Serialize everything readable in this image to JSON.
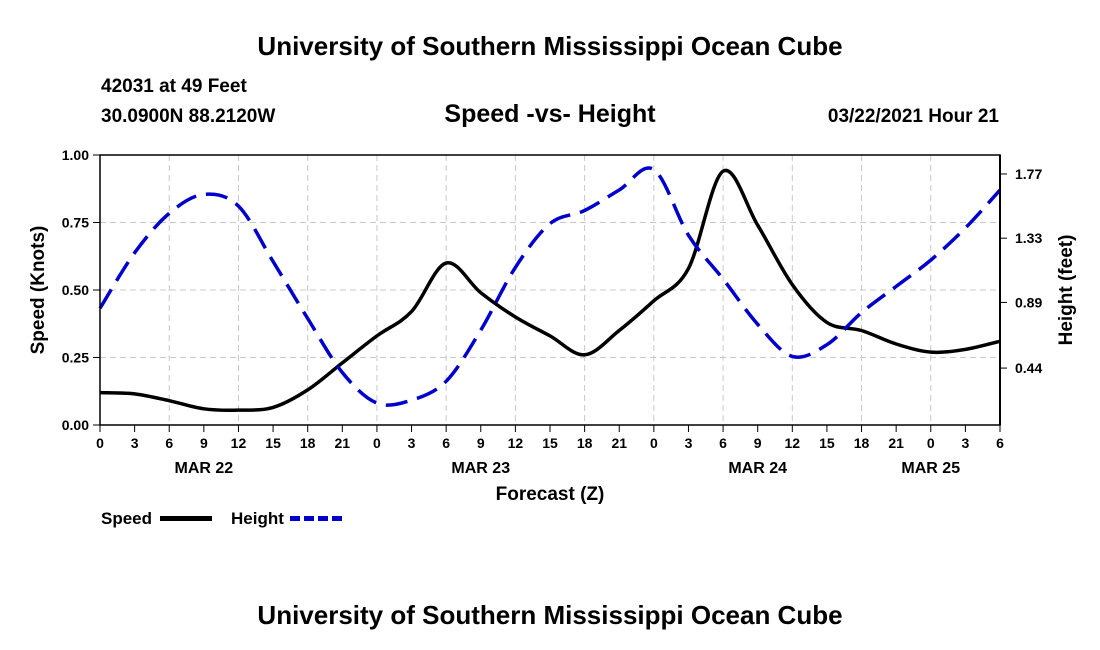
{
  "header": {
    "top_title": "University of Southern Mississippi Ocean Cube",
    "station": "42031 at 49 Feet",
    "coords": "30.0900N 88.2120W",
    "chart_title": "Speed -vs- Height",
    "date_hour": "03/22/2021 Hour 21"
  },
  "footer": {
    "bottom_title": "University of Southern Mississippi Ocean Cube"
  },
  "legend": {
    "speed_label": "Speed",
    "height_label": "Height"
  },
  "colors": {
    "speed": "#000000",
    "height": "#0000cc",
    "grid": "#c8c8c8"
  },
  "chart_data": {
    "type": "line",
    "title": "Speed -vs- Height",
    "xlabel": "Forecast (Z)",
    "ylabel": "Speed (Knots)",
    "ylabel_right": "Height (feet)",
    "xlim_hours": [
      0,
      78
    ],
    "ylim": [
      0,
      1
    ],
    "ylim_right": [
      0.05,
      1.9
    ],
    "x_ticks": [
      0,
      3,
      6,
      9,
      12,
      15,
      18,
      21,
      24,
      27,
      30,
      33,
      36,
      39,
      42,
      45,
      48,
      51,
      54,
      57,
      60,
      63,
      66,
      69,
      72,
      75,
      78
    ],
    "x_tick_labels": [
      "0",
      "3",
      "6",
      "9",
      "12",
      "15",
      "18",
      "21",
      "0",
      "3",
      "6",
      "9",
      "12",
      "15",
      "18",
      "21",
      "0",
      "3",
      "6",
      "9",
      "12",
      "15",
      "18",
      "21",
      "0",
      "3",
      "6"
    ],
    "date_labels": [
      {
        "hour": 9,
        "label": "MAR 22"
      },
      {
        "hour": 33,
        "label": "MAR 23"
      },
      {
        "hour": 57,
        "label": "MAR 24"
      },
      {
        "hour": 72,
        "label": "MAR 25"
      }
    ],
    "y_ticks": [
      0.0,
      0.25,
      0.5,
      0.75,
      1.0
    ],
    "y_tick_labels": [
      "0.00",
      "0.25",
      "0.50",
      "0.75",
      "1.00"
    ],
    "y_right_ticks": [
      0.44,
      0.89,
      1.33,
      1.77
    ],
    "y_right_tick_labels": [
      "0.44",
      "0.89",
      "1.33",
      "1.77"
    ],
    "grid": true,
    "series": [
      {
        "name": "Speed",
        "axis": "left",
        "style": "solid",
        "x": [
          0,
          3,
          6,
          9,
          12,
          15,
          18,
          21,
          24,
          27,
          30,
          33,
          36,
          39,
          42,
          45,
          48,
          51,
          54,
          57,
          60,
          63,
          66,
          69,
          72,
          75,
          78
        ],
        "values": [
          0.12,
          0.115,
          0.09,
          0.06,
          0.055,
          0.065,
          0.13,
          0.23,
          0.33,
          0.42,
          0.6,
          0.49,
          0.4,
          0.33,
          0.26,
          0.35,
          0.46,
          0.58,
          0.94,
          0.74,
          0.52,
          0.38,
          0.35,
          0.3,
          0.27,
          0.28,
          0.31
        ]
      },
      {
        "name": "Height",
        "axis": "right",
        "style": "dashed",
        "x": [
          0,
          3,
          6,
          9,
          12,
          15,
          18,
          21,
          24,
          27,
          30,
          33,
          36,
          39,
          42,
          45,
          48,
          51,
          54,
          57,
          60,
          63,
          66,
          69,
          72,
          75,
          78
        ],
        "values": [
          0.85,
          1.23,
          1.5,
          1.63,
          1.55,
          1.17,
          0.78,
          0.41,
          0.2,
          0.22,
          0.35,
          0.7,
          1.13,
          1.43,
          1.52,
          1.66,
          1.8,
          1.35,
          1.05,
          0.74,
          0.52,
          0.6,
          0.82,
          1.0,
          1.18,
          1.4,
          1.66
        ]
      }
    ]
  }
}
